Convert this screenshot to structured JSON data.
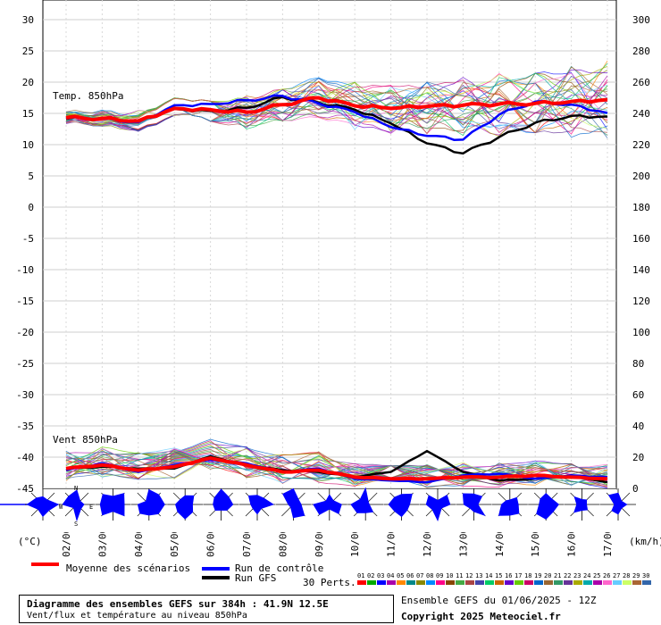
{
  "chart_data": [
    {
      "type": "line",
      "label": "Temp. 850hPa",
      "ylim": [
        0,
        30
      ],
      "left_ticks": [
        "30",
        "25",
        "20",
        "15",
        "10",
        "5",
        "0"
      ],
      "right_ticks": [
        "300",
        "280",
        "260",
        "240",
        "220",
        "200",
        "180"
      ],
      "x": [
        "02/06",
        "03/06",
        "04/06",
        "05/06",
        "06/06",
        "07/06",
        "08/06",
        "09/06",
        "10/06",
        "11/06",
        "12/06",
        "13/06",
        "14/06",
        "15/06",
        "16/06",
        "17/06"
      ],
      "series": [
        {
          "name": "Moyenne des scénarios",
          "color": "#ff0000",
          "values": [
            14.3,
            14.2,
            13.8,
            15.8,
            15.6,
            15.2,
            16.4,
            17.5,
            16.2,
            15.8,
            16.1,
            16.3,
            16.5,
            16.6,
            16.9,
            17.2
          ]
        },
        {
          "name": "Run de contrôle",
          "color": "#0000ff",
          "values": [
            14.2,
            14.1,
            13.6,
            16.3,
            16.5,
            17.1,
            17.8,
            16.6,
            15.2,
            12.8,
            11.4,
            10.8,
            14.8,
            16.9,
            16.4,
            15.1
          ]
        },
        {
          "name": "Run GFS",
          "color": "#000000",
          "values": [
            14.1,
            14.3,
            13.7,
            15.7,
            15.4,
            15.9,
            17.6,
            16.7,
            15.6,
            13.4,
            10.2,
            8.6,
            11.2,
            13.5,
            14.6,
            14.5
          ]
        }
      ]
    },
    {
      "type": "line",
      "label": "Vent 850hPa",
      "ylim": [
        0,
        180
      ],
      "left_ticks": [
        "-5",
        "-10",
        "-15",
        "-20",
        "-25",
        "-30",
        "-35",
        "-40",
        "-45"
      ],
      "right_ticks": [
        "160",
        "140",
        "120",
        "100",
        "80",
        "60",
        "40",
        "20",
        "0"
      ],
      "x": [
        "02/06",
        "03/06",
        "04/06",
        "05/06",
        "06/06",
        "07/06",
        "08/06",
        "09/06",
        "10/06",
        "11/06",
        "12/06",
        "13/06",
        "14/06",
        "15/06",
        "16/06",
        "17/06"
      ],
      "series": [
        {
          "name": "Moyenne des scénarios",
          "color": "#ff0000",
          "values": [
            12,
            14,
            11,
            13,
            18,
            14,
            10,
            11,
            7,
            6,
            6,
            7,
            7,
            8,
            7,
            6
          ]
        },
        {
          "name": "Run de contrôle",
          "color": "#0000ff",
          "values": [
            11,
            15,
            10,
            14,
            17,
            15,
            10,
            12,
            6,
            5,
            4,
            8,
            9,
            6,
            8,
            7
          ]
        },
        {
          "name": "Run GFS",
          "color": "#000000",
          "values": [
            12,
            13,
            12,
            12,
            19,
            14,
            11,
            10,
            7,
            10,
            22,
            10,
            5,
            6,
            8,
            4
          ]
        }
      ]
    }
  ],
  "axis": {
    "left_unit": "(°C)",
    "right_unit": "(km/h)"
  },
  "legend": {
    "mean": "Moyenne des scénarios",
    "control": "Run de contrôle",
    "gfs": "Run GFS",
    "perts": "30 Perts.",
    "pert_numbers": [
      "01",
      "02",
      "03",
      "04",
      "05",
      "06",
      "07",
      "08",
      "09",
      "10",
      "11",
      "12",
      "13",
      "14",
      "15",
      "16",
      "17",
      "18",
      "19",
      "20",
      "21",
      "22",
      "23",
      "24",
      "25",
      "26",
      "27",
      "28",
      "29",
      "30"
    ],
    "pert_colors": [
      "#ff0000",
      "#00aa00",
      "#0000ff",
      "#aa00aa",
      "#ff8800",
      "#008888",
      "#888800",
      "#0088ff",
      "#ff0088",
      "#884400",
      "#44aa44",
      "#aa4444",
      "#4444aa",
      "#00cc66",
      "#cc6600",
      "#6600cc",
      "#66cc00",
      "#cc0066",
      "#0066cc",
      "#996633",
      "#339966",
      "#663399",
      "#aaaa00",
      "#00aaaa",
      "#aa00aa",
      "#ff66cc",
      "#66ccff",
      "#ccff66",
      "#aa6633",
      "#3366aa"
    ]
  },
  "compass": {
    "n": "N",
    "w": "W",
    "e": "E",
    "s": "S"
  },
  "footer": {
    "title_line": "Diagramme des ensembles GEFS sur 384h : 41.9N 12.5E",
    "subtitle_line": "Vent/flux et température au niveau 850hPa",
    "run_line": "Ensemble GEFS du 01/06/2025 - 12Z",
    "copyright": "Copyright 2025 Meteociel.fr"
  }
}
